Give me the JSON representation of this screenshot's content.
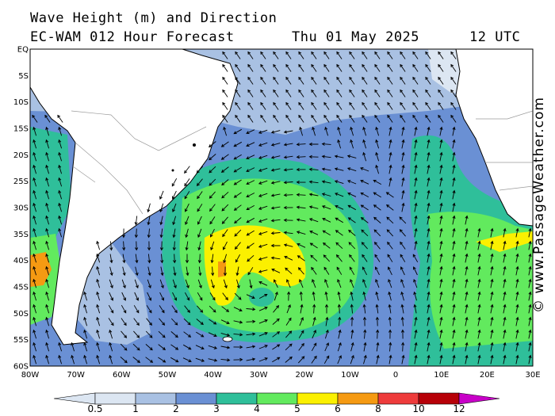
{
  "header": {
    "line1": "Wave Height (m) and Direction",
    "model": "EC-WAM 012 Hour Forecast",
    "date": "Thu 01 May 2025",
    "time": "12 UTC"
  },
  "lat_labels": [
    "EQ",
    "5S",
    "10S",
    "15S",
    "20S",
    "25S",
    "30S",
    "35S",
    "40S",
    "45S",
    "50S",
    "55S",
    "60S"
  ],
  "lon_labels": [
    "80W",
    "70W",
    "60W",
    "50W",
    "40W",
    "30W",
    "20W",
    "10W",
    "0",
    "10E",
    "20E",
    "30E"
  ],
  "watermark": "© www.PassageWeather.com",
  "colors": {
    "land": "#ffffff",
    "sea_lt_1": "#dce6f2",
    "sea_1_2": "#a9c1e3",
    "sea_2_3": "#6a90d4",
    "sea_3_4": "#2fbf9a",
    "sea_4_5": "#62ea5e",
    "sea_5_6": "#fbf000",
    "sea_6_8": "#f59a12",
    "sea_8_10": "#ee3b3b",
    "sea_10_12": "#b70008",
    "sea_gt_12": "#c800c8"
  },
  "colorbar": {
    "labels": [
      "0.5",
      "1",
      "2",
      "3",
      "4",
      "5",
      "6",
      "8",
      "10",
      "12"
    ]
  }
}
